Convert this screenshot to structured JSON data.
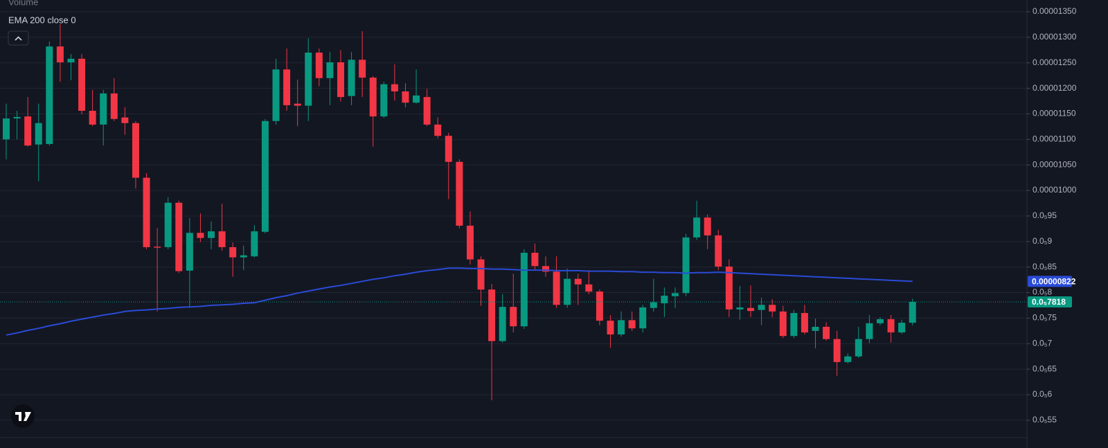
{
  "chart_data": {
    "type": "candlestick",
    "volume_label": "Volume",
    "up_color": "#089981",
    "down_color": "#f23645",
    "open": [
      1.1e-05,
      1.141e-05,
      1.145e-05,
      1.09e-05,
      1.091e-05,
      1.282e-05,
      1.251e-05,
      1.258e-05,
      1.156e-05,
      1.129e-05,
      1.19e-05,
      1.143e-05,
      1.132e-05,
      1.025e-05,
      8.9e-06,
      8.89e-06,
      9.76e-06,
      8.43e-06,
      9.17e-06,
      9.07e-06,
      9.2e-06,
      8.89e-06,
      8.69e-06,
      8.71e-06,
      9.19e-06,
      1.136e-05,
      1.237e-05,
      1.17e-05,
      1.166e-05,
      1.27e-05,
      1.22e-05,
      1.251e-05,
      1.185e-05,
      1.256e-05,
      1.221e-05,
      1.145e-05,
      1.208e-05,
      1.194e-05,
      1.172e-05,
      1.183e-05,
      1.129e-05,
      1.107e-05,
      1.056e-05,
      9.31e-06,
      8.65e-06,
      8.06e-06,
      7.05e-06,
      7.72e-06,
      7.34e-06,
      8.78e-06,
      8.52e-06,
      8.41e-06,
      7.76e-06,
      8.27e-06,
      8.16e-06,
      8.02e-06,
      7.45e-06,
      7.18e-06,
      7.46e-06,
      7.3e-06,
      7.7e-06,
      7.79e-06,
      7.93e-06,
      7.99e-06,
      9.08e-06,
      9.47e-06,
      9.12e-06,
      8.51e-06,
      7.67e-06,
      7.7e-06,
      7.66e-06,
      7.76e-06,
      7.63e-06,
      7.15e-06,
      7.6e-06,
      7.25e-06,
      7.33e-06,
      7.09e-06,
      6.64e-06,
      6.75e-06,
      7.09e-06,
      7.4e-06,
      7.48e-06,
      7.22e-06,
      7.41e-06
    ],
    "high": [
      1.17e-05,
      1.156e-05,
      1.183e-05,
      1.17e-05,
      1.292e-05,
      1.326e-05,
      1.267e-05,
      1.267e-05,
      1.197e-05,
      1.197e-05,
      1.22e-05,
      1.163e-05,
      1.136e-05,
      1.034e-05,
      9.26e-06,
      9.87e-06,
      9.8e-06,
      9.46e-06,
      9.55e-06,
      9.39e-06,
      9.74e-06,
      8.98e-06,
      8.92e-06,
      9.32e-06,
      1.14e-05,
      1.258e-05,
      1.278e-05,
      1.217e-05,
      1.298e-05,
      1.278e-05,
      1.271e-05,
      1.275e-05,
      1.271e-05,
      1.312e-05,
      1.224e-05,
      1.213e-05,
      1.247e-05,
      1.21e-05,
      1.237e-05,
      1.199e-05,
      1.143e-05,
      1.113e-05,
      1.061e-05,
      9.59e-06,
      8.71e-06,
      8.17e-06,
      7.97e-06,
      8.37e-06,
      8.85e-06,
      8.96e-06,
      8.71e-06,
      8.71e-06,
      8.47e-06,
      8.37e-06,
      8.44e-06,
      8.06e-06,
      7.56e-06,
      7.63e-06,
      7.63e-06,
      7.76e-06,
      8.27e-06,
      8.1e-06,
      8.1e-06,
      9.15e-06,
      9.8e-06,
      9.53e-06,
      9.23e-06,
      8.65e-06,
      8.13e-06,
      8.14e-06,
      7.9e-06,
      7.87e-06,
      7.74e-06,
      7.66e-06,
      7.76e-06,
      7.49e-06,
      7.42e-06,
      7.25e-06,
      6.81e-06,
      7.33e-06,
      7.56e-06,
      7.52e-06,
      7.56e-06,
      7.47e-06,
      7.88e-06
    ],
    "low": [
      1.061e-05,
      1.1e-05,
      1.086e-05,
      1.018e-05,
      1.088e-05,
      1.213e-05,
      1.216e-05,
      1.149e-05,
      1.126e-05,
      1.088e-05,
      1.136e-05,
      1.109e-05,
      1.004e-05,
      8.85e-06,
      7.63e-06,
      8.85e-06,
      8.38e-06,
      7.7e-06,
      8.99e-06,
      8.85e-06,
      8.82e-06,
      8.31e-06,
      8.44e-06,
      8.69e-06,
      9.16e-06,
      1.129e-05,
      1.156e-05,
      1.126e-05,
      1.136e-05,
      1.204e-05,
      1.167e-05,
      1.174e-05,
      1.167e-05,
      1.183e-05,
      1.086e-05,
      1.142e-05,
      1.176e-05,
      1.163e-05,
      1.17e-05,
      1.126e-05,
      1.102e-05,
      9.83e-06,
      9.26e-06,
      8.55e-06,
      7.74e-06,
      5.89e-06,
      7.02e-06,
      7.22e-06,
      7.29e-06,
      8.44e-06,
      8.31e-06,
      7.7e-06,
      7.7e-06,
      7.76e-06,
      7.97e-06,
      7.36e-06,
      6.92e-06,
      7.14e-06,
      7.25e-06,
      7.22e-06,
      7.63e-06,
      7.52e-06,
      7.7e-06,
      7.93e-06,
      9.03e-06,
      8.85e-06,
      8.44e-06,
      7.52e-06,
      7.47e-06,
      7.52e-06,
      7.36e-06,
      7.52e-06,
      7.11e-06,
      7.11e-06,
      7.18e-06,
      6.91e-06,
      7.06e-06,
      6.37e-06,
      6.61e-06,
      6.72e-06,
      7.01e-06,
      7.36e-06,
      7.02e-06,
      7.19e-06,
      7.36e-06
    ],
    "close": [
      1.141e-05,
      1.144e-05,
      1.088e-05,
      1.132e-05,
      1.282e-05,
      1.251e-05,
      1.258e-05,
      1.156e-05,
      1.129e-05,
      1.19e-05,
      1.14e-05,
      1.132e-05,
      1.025e-05,
      8.89e-06,
      8.88e-06,
      9.76e-06,
      8.42e-06,
      9.17e-06,
      9.07e-06,
      9.2e-06,
      8.89e-06,
      8.69e-06,
      8.73e-06,
      9.2e-06,
      1.136e-05,
      1.237e-05,
      1.167e-05,
      1.166e-05,
      1.27e-05,
      1.22e-05,
      1.251e-05,
      1.183e-05,
      1.256e-05,
      1.221e-05,
      1.145e-05,
      1.208e-05,
      1.194e-05,
      1.172e-05,
      1.186e-05,
      1.129e-05,
      1.107e-05,
      1.056e-05,
      9.31e-06,
      8.65e-06,
      8.06e-06,
      7.05e-06,
      7.72e-06,
      7.34e-06,
      8.78e-06,
      8.52e-06,
      8.41e-06,
      7.76e-06,
      8.27e-06,
      8.16e-06,
      8.02e-06,
      7.45e-06,
      7.18e-06,
      7.46e-06,
      7.3e-06,
      7.71e-06,
      7.81e-06,
      7.94e-06,
      7.99e-06,
      9.08e-06,
      9.47e-06,
      9.12e-06,
      8.51e-06,
      7.67e-06,
      7.71e-06,
      7.64e-06,
      7.76e-06,
      7.63e-06,
      7.15e-06,
      7.6e-06,
      7.22e-06,
      7.33e-06,
      7.09e-06,
      6.64e-06,
      6.75e-06,
      7.09e-06,
      7.4e-06,
      7.48e-06,
      7.22e-06,
      7.41e-06,
      7.818e-06
    ],
    "series": [
      {
        "name": "EMA 200 close 0",
        "color": "#2a4bd7",
        "values": [
          7.17e-06,
          7.21e-06,
          7.26e-06,
          7.3e-06,
          7.35e-06,
          7.39e-06,
          7.44e-06,
          7.48e-06,
          7.52e-06,
          7.56e-06,
          7.59e-06,
          7.63e-06,
          7.65e-06,
          7.66e-06,
          7.68e-06,
          7.69e-06,
          7.71e-06,
          7.72e-06,
          7.73e-06,
          7.75e-06,
          7.76e-06,
          7.77e-06,
          7.79e-06,
          7.8e-06,
          7.85e-06,
          7.9e-06,
          7.94e-06,
          7.99e-06,
          8.03e-06,
          8.07e-06,
          8.11e-06,
          8.14e-06,
          8.18e-06,
          8.22e-06,
          8.26e-06,
          8.29e-06,
          8.33e-06,
          8.36e-06,
          8.4e-06,
          8.43e-06,
          8.45e-06,
          8.48e-06,
          8.48e-06,
          8.47e-06,
          8.47e-06,
          8.46e-06,
          8.46e-06,
          8.45e-06,
          8.44e-06,
          8.44e-06,
          8.44e-06,
          8.43e-06,
          8.43e-06,
          8.43e-06,
          8.42e-06,
          8.42e-06,
          8.42e-06,
          8.41e-06,
          8.41e-06,
          8.4e-06,
          8.4e-06,
          8.39e-06,
          8.39e-06,
          8.38e-06,
          8.39e-06,
          8.39e-06,
          8.4e-06,
          8.39e-06,
          8.38e-06,
          8.37e-06,
          8.36e-06,
          8.35e-06,
          8.34e-06,
          8.33e-06,
          8.32e-06,
          8.31e-06,
          8.3e-06,
          8.29e-06,
          8.28e-06,
          8.27e-06,
          8.26e-06,
          8.25e-06,
          8.24e-06,
          8.23e-06,
          8.22e-06
        ]
      }
    ],
    "price_labels": [
      {
        "value": 8.22e-06,
        "label": "0.00000822",
        "color": "#2a4bd7"
      },
      {
        "value": 7.818e-06,
        "label": "0.0₅7818",
        "color": "#089981"
      }
    ],
    "ylim": [
      5.16e-06,
      1.373e-05
    ],
    "yticks": [
      {
        "value": 1.35e-05,
        "label": "0.00001350"
      },
      {
        "value": 1.3e-05,
        "label": "0.00001300"
      },
      {
        "value": 1.25e-05,
        "label": "0.00001250"
      },
      {
        "value": 1.2e-05,
        "label": "0.00001200"
      },
      {
        "value": 1.15e-05,
        "label": "0.00001150"
      },
      {
        "value": 1.1e-05,
        "label": "0.00001100"
      },
      {
        "value": 1.05e-05,
        "label": "0.00001050"
      },
      {
        "value": 1e-05,
        "label": "0.00001000"
      },
      {
        "value": 9.5e-06,
        "label": "0.0₅95"
      },
      {
        "value": 9e-06,
        "label": "0.0₅9"
      },
      {
        "value": 8.5e-06,
        "label": "0.0₅85"
      },
      {
        "value": 8e-06,
        "label": "0.0₅8"
      },
      {
        "value": 7.5e-06,
        "label": "0.0₅75"
      },
      {
        "value": 7e-06,
        "label": "0.0₅7"
      },
      {
        "value": 6.5e-06,
        "label": "0.0₅65"
      },
      {
        "value": 6e-06,
        "label": "0.0₅6"
      },
      {
        "value": 5.5e-06,
        "label": "0.0₅55"
      }
    ],
    "grid": true
  }
}
